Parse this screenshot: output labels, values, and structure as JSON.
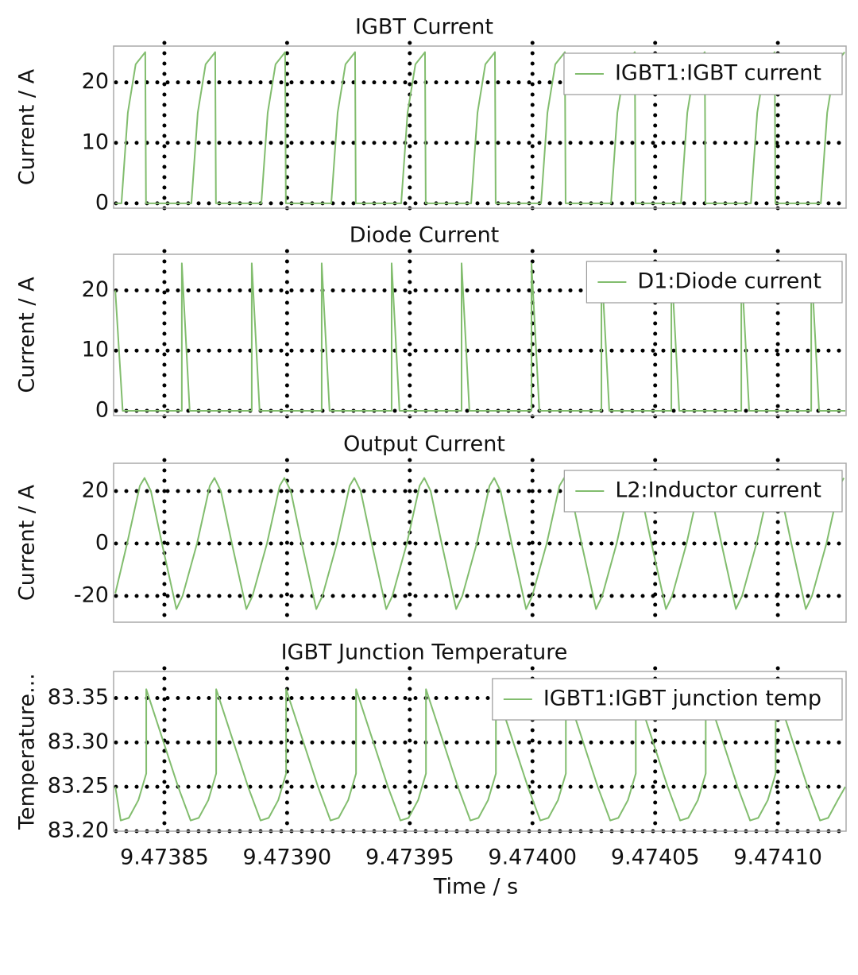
{
  "chart_data": [
    {
      "type": "line",
      "title": "IGBT Current",
      "ylabel": "Current / A",
      "x": [
        9.47383,
        9.4738325,
        9.4738351,
        9.4738383,
        9.4738422,
        9.4738425,
        9.473861,
        9.4738636,
        9.4738668,
        9.4738707,
        9.473871,
        9.4738895,
        9.4738921,
        9.4738953,
        9.4738992,
        9.4738995,
        9.473918,
        9.4739206,
        9.4739238,
        9.4739277,
        9.473928,
        9.4739465,
        9.4739491,
        9.4739523,
        9.4739562,
        9.4739565,
        9.473975,
        9.4739776,
        9.4739808,
        9.4739847,
        9.473985,
        9.4740035,
        9.4740061,
        9.4740093,
        9.4740132,
        9.4740135,
        9.474032,
        9.4740346,
        9.4740378,
        9.4740417,
        9.474042,
        9.4740605,
        9.4740631,
        9.4740663,
        9.4740702,
        9.4740705,
        9.474089,
        9.4740916,
        9.4740948,
        9.4740987,
        9.474099,
        9.4741175,
        9.4741201,
        9.4741233,
        9.4741272
      ],
      "series": [
        {
          "name": "IGBT1:IGBT current",
          "color": "#82bd6e",
          "values": [
            0,
            0,
            15,
            23,
            25,
            0,
            0,
            15,
            23,
            25,
            0,
            0,
            15,
            23,
            25,
            0,
            0,
            15,
            23,
            25,
            0,
            0,
            15,
            23,
            25,
            0,
            0,
            15,
            23,
            25,
            0,
            0,
            15,
            23,
            25,
            0,
            0,
            15,
            23,
            25,
            0,
            0,
            15,
            23,
            25,
            0,
            0,
            15,
            23,
            25,
            0,
            0,
            15,
            23,
            25
          ]
        }
      ],
      "ylim": [
        -0.8,
        26
      ],
      "yticks": [
        0,
        10,
        20
      ],
      "grid": true,
      "legend": "upper right"
    },
    {
      "type": "line",
      "title": "Diode Current",
      "ylabel": "Current / A",
      "x": [
        9.47383,
        9.473833,
        9.4738571,
        9.4738571,
        9.4738603,
        9.4738856,
        9.4738856,
        9.4738888,
        9.4739141,
        9.4739141,
        9.4739173,
        9.4739426,
        9.4739426,
        9.4739458,
        9.4739711,
        9.4739711,
        9.4739743,
        9.4739996,
        9.4739996,
        9.4740028,
        9.4740281,
        9.4740281,
        9.4740313,
        9.4740566,
        9.4740566,
        9.4740598,
        9.4740851,
        9.4740851,
        9.4740883,
        9.4741136,
        9.4741136,
        9.4741168,
        9.4741275
      ],
      "series": [
        {
          "name": "D1:Diode current",
          "color": "#82bd6e",
          "values": [
            20,
            0,
            0,
            24.5,
            0,
            0,
            24.5,
            0,
            0,
            24.5,
            0,
            0,
            24.5,
            0,
            0,
            24.5,
            0,
            0,
            24.5,
            0,
            0,
            24.5,
            0,
            0,
            24.5,
            0,
            0,
            24.5,
            0,
            0,
            24.5,
            0,
            0
          ]
        }
      ],
      "ylim": [
        -0.8,
        26
      ],
      "yticks": [
        0,
        10,
        20
      ],
      "grid": true,
      "legend": "upper right"
    },
    {
      "type": "line",
      "title": "Output Current",
      "ylabel": "Current / A",
      "x": [
        9.47383,
        9.4738348,
        9.47384,
        9.4738419,
        9.4738445,
        9.473849,
        9.4738549,
        9.4738574,
        9.4738633,
        9.4738685,
        9.4738704,
        9.473873,
        9.4738775,
        9.4738834,
        9.4738859,
        9.4738918,
        9.473897,
        9.4738989,
        9.4739015,
        9.473906,
        9.4739119,
        9.4739144,
        9.4739203,
        9.4739255,
        9.4739274,
        9.47393,
        9.4739345,
        9.4739404,
        9.4739429,
        9.4739488,
        9.473954,
        9.4739559,
        9.4739585,
        9.473963,
        9.4739689,
        9.4739714,
        9.4739773,
        9.4739825,
        9.4739844,
        9.473987,
        9.4739915,
        9.4739974,
        9.4739999,
        9.4740058,
        9.474011,
        9.4740129,
        9.4740155,
        9.47402,
        9.4740259,
        9.4740284,
        9.4740343,
        9.4740395,
        9.4740414,
        9.474044,
        9.4740485,
        9.4740544,
        9.4740569,
        9.4740628,
        9.474068,
        9.4740699,
        9.4740725,
        9.474077,
        9.4740829,
        9.4740854,
        9.4740913,
        9.4740965,
        9.4740984,
        9.474101,
        9.4741055,
        9.4741114,
        9.4741139,
        9.4741198,
        9.474125,
        9.4741269
      ],
      "series": [
        {
          "name": "L2:Inductor current",
          "color": "#82bd6e",
          "values": [
            -19,
            0,
            22,
            25,
            20,
            0,
            -25,
            -20,
            0,
            22,
            25,
            20,
            0,
            -25,
            -20,
            0,
            22,
            25,
            20,
            0,
            -25,
            -20,
            0,
            22,
            25,
            20,
            0,
            -25,
            -20,
            0,
            22,
            25,
            20,
            0,
            -25,
            -20,
            0,
            22,
            25,
            20,
            0,
            -25,
            -20,
            0,
            22,
            25,
            20,
            0,
            -25,
            -20,
            0,
            22,
            25,
            20,
            0,
            -25,
            -20,
            0,
            22,
            25,
            20,
            0,
            -25,
            -20,
            0,
            22,
            25,
            20,
            0,
            -25,
            -20,
            0,
            22,
            25
          ]
        }
      ],
      "ylim": [
        -30,
        30.6
      ],
      "yticks": [
        -20,
        0,
        20
      ],
      "grid": true,
      "legend": "upper right"
    },
    {
      "type": "line",
      "title": "IGBT Junction Temperature",
      "ylabel": "Temperature...",
      "xlabel": "Time / s",
      "x": [
        9.47383,
        9.4738322,
        9.4738355,
        9.4738394,
        9.4738426,
        9.4738426,
        9.4738556,
        9.4738607,
        9.473864,
        9.4738679,
        9.4738711,
        9.4738711,
        9.4738841,
        9.4738892,
        9.4738925,
        9.4738964,
        9.4738996,
        9.4738996,
        9.4739126,
        9.4739177,
        9.473921,
        9.4739249,
        9.4739281,
        9.4739281,
        9.4739411,
        9.4739462,
        9.4739495,
        9.4739534,
        9.4739566,
        9.4739566,
        9.4739696,
        9.4739747,
        9.473978,
        9.4739819,
        9.4739851,
        9.4739851,
        9.4739981,
        9.4740032,
        9.4740065,
        9.4740104,
        9.4740136,
        9.4740136,
        9.4740266,
        9.4740317,
        9.474035,
        9.4740389,
        9.4740421,
        9.4740421,
        9.4740551,
        9.4740602,
        9.4740635,
        9.4740674,
        9.4740706,
        9.4740706,
        9.4740836,
        9.4740887,
        9.474092,
        9.4740959,
        9.4740991,
        9.4740991,
        9.4741121,
        9.4741172,
        9.4741205,
        9.4741244,
        9.4741275
      ],
      "series": [
        {
          "name": "IGBT1:IGBT junction temp",
          "color": "#82bd6e",
          "values": [
            83.25,
            83.212,
            83.215,
            83.235,
            83.265,
            83.36,
            83.25,
            83.212,
            83.215,
            83.235,
            83.265,
            83.36,
            83.25,
            83.212,
            83.215,
            83.235,
            83.265,
            83.36,
            83.25,
            83.212,
            83.215,
            83.235,
            83.265,
            83.36,
            83.25,
            83.212,
            83.215,
            83.235,
            83.265,
            83.36,
            83.25,
            83.212,
            83.215,
            83.235,
            83.265,
            83.36,
            83.25,
            83.212,
            83.215,
            83.235,
            83.265,
            83.36,
            83.25,
            83.212,
            83.215,
            83.235,
            83.265,
            83.36,
            83.25,
            83.212,
            83.215,
            83.235,
            83.265,
            83.36,
            83.25,
            83.212,
            83.215,
            83.235,
            83.265,
            83.36,
            83.25,
            83.212,
            83.215,
            83.235,
            83.25
          ]
        }
      ],
      "ylim": [
        83.2,
        83.38
      ],
      "yticks": [
        {
          "value": 83.2,
          "label": "83.20"
        },
        83.25,
        {
          "value": 83.3,
          "label": "83.30"
        },
        83.35
      ],
      "xlim": [
        9.4738293,
        9.4741278
      ],
      "xticks": [
        9.47385,
        {
          "value": 9.4739,
          "label": "9.47390"
        },
        9.47395,
        {
          "value": 9.474,
          "label": "9.47400"
        },
        9.47405,
        {
          "value": 9.4741,
          "label": "9.47410"
        }
      ],
      "grid": true,
      "legend": "upper right"
    }
  ]
}
